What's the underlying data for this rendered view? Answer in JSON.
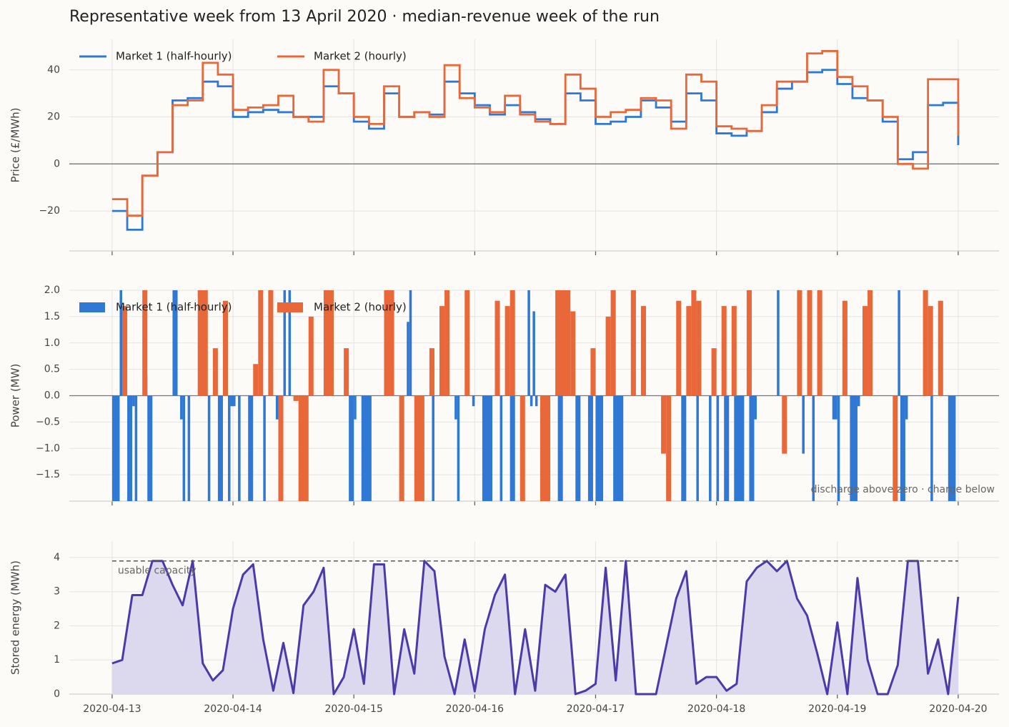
{
  "title": "Representative week from 13 April 2020  ·  median-revenue week of the run",
  "chart_data": [
    {
      "type": "line",
      "step": true,
      "ylabel": "Price (£/MWh)",
      "legend": "upper left",
      "grid": true,
      "xlim": [
        "2020-04-12T15:30",
        "2020-04-20T08:06"
      ],
      "xticks": [
        "2020-04-13",
        "2020-04-14",
        "2020-04-15",
        "2020-04-16",
        "2020-04-17",
        "2020-04-18",
        "2020-04-19",
        "2020-04-20"
      ],
      "ylim": [
        -37,
        53
      ],
      "yticks": [
        {
          "value": -20,
          "label": "−20"
        },
        0,
        20,
        40
      ],
      "x": [
        "2020-04-13T00:00",
        "2020-04-13T03:00",
        "2020-04-13T06:00",
        "2020-04-13T09:00",
        "2020-04-13T12:00",
        "2020-04-13T15:00",
        "2020-04-13T18:00",
        "2020-04-13T21:00",
        "2020-04-14T00:00",
        "2020-04-14T03:00",
        "2020-04-14T06:00",
        "2020-04-14T09:00",
        "2020-04-14T12:00",
        "2020-04-14T15:00",
        "2020-04-14T18:00",
        "2020-04-14T21:00",
        "2020-04-15T00:00",
        "2020-04-15T03:00",
        "2020-04-15T06:00",
        "2020-04-15T09:00",
        "2020-04-15T12:00",
        "2020-04-15T15:00",
        "2020-04-15T18:00",
        "2020-04-15T21:00",
        "2020-04-16T00:00",
        "2020-04-16T03:00",
        "2020-04-16T06:00",
        "2020-04-16T09:00",
        "2020-04-16T12:00",
        "2020-04-16T15:00",
        "2020-04-16T18:00",
        "2020-04-16T21:00",
        "2020-04-17T00:00",
        "2020-04-17T03:00",
        "2020-04-17T06:00",
        "2020-04-17T09:00",
        "2020-04-17T12:00",
        "2020-04-17T15:00",
        "2020-04-17T18:00",
        "2020-04-17T21:00",
        "2020-04-18T00:00",
        "2020-04-18T03:00",
        "2020-04-18T06:00",
        "2020-04-18T09:00",
        "2020-04-18T12:00",
        "2020-04-18T15:00",
        "2020-04-18T18:00",
        "2020-04-18T21:00",
        "2020-04-19T00:00",
        "2020-04-19T03:00",
        "2020-04-19T06:00",
        "2020-04-19T09:00",
        "2020-04-19T12:00",
        "2020-04-19T15:00",
        "2020-04-19T18:00",
        "2020-04-19T21:00",
        "2020-04-20T00:00"
      ],
      "series": [
        {
          "name": "Market 1 (half-hourly)",
          "color": "#2f78d4",
          "values": [
            -20,
            -28,
            -5,
            5,
            27,
            28,
            35,
            33,
            20,
            22,
            23,
            22,
            20,
            20,
            33,
            30,
            18,
            15,
            30,
            20,
            22,
            21,
            35,
            30,
            25,
            21,
            25,
            22,
            19,
            17,
            30,
            27,
            17,
            18,
            20,
            27,
            24,
            18,
            30,
            27,
            13,
            12,
            14,
            22,
            32,
            35,
            39,
            40,
            34,
            28,
            27,
            18,
            2,
            5,
            25,
            26,
            8
          ]
        },
        {
          "name": "Market 2 (hourly)",
          "color": "#e8683a",
          "values": [
            -15,
            -22,
            -5,
            5,
            25,
            27,
            43,
            38,
            23,
            24,
            25,
            29,
            20,
            18,
            40,
            30,
            20,
            17,
            33,
            20,
            22,
            20,
            42,
            28,
            24,
            22,
            29,
            21,
            18,
            17,
            38,
            32,
            20,
            22,
            23,
            28,
            27,
            15,
            38,
            35,
            16,
            15,
            14,
            25,
            35,
            35,
            47,
            48,
            37,
            33,
            27,
            20,
            0,
            -2,
            36,
            36,
            12
          ]
        }
      ]
    },
    {
      "type": "bar",
      "ylabel": "Power (MW)",
      "legend": "upper left",
      "grid": true,
      "annotation": "discharge above zero · charge below",
      "xlim": [
        "2020-04-12T15:30",
        "2020-04-20T08:06"
      ],
      "xticks": [
        "2020-04-13",
        "2020-04-14",
        "2020-04-15",
        "2020-04-16",
        "2020-04-17",
        "2020-04-18",
        "2020-04-19",
        "2020-04-20"
      ],
      "ylim": [
        -2,
        2
      ],
      "yticks": [
        {
          "value": -1.5,
          "label": "−1.5"
        },
        {
          "value": -1,
          "label": "−1.0"
        },
        {
          "value": -0.5,
          "label": "−0.5"
        },
        {
          "value": 0,
          "label": "0.0"
        },
        {
          "value": 0.5,
          "label": "0.5"
        },
        {
          "value": 1,
          "label": "1.0"
        },
        {
          "value": 1.5,
          "label": "1.5"
        },
        {
          "value": 2,
          "label": "2.0"
        }
      ],
      "series": [
        {
          "name": "Market 1 (half-hourly)",
          "color": "#2f78d4",
          "x": [
            "2020-04-13T00:00",
            "2020-04-13T01:30",
            "2020-04-13T03:00",
            "2020-04-13T04:00",
            "2020-04-13T04:30",
            "2020-04-13T06:30",
            "2020-04-13T07:00",
            "2020-04-13T12:00",
            "2020-04-13T13:30",
            "2020-04-13T14:00",
            "2020-04-13T15:00",
            "2020-04-13T19:00",
            "2020-04-13T21:00",
            "2020-04-13T23:00",
            "2020-04-13T23:30",
            "2020-04-14T01:00",
            "2020-04-14T03:00",
            "2020-04-14T06:00",
            "2020-04-14T08:30",
            "2020-04-14T10:00",
            "2020-04-14T11:00",
            "2020-04-14T23:00",
            "2020-04-15T00:00",
            "2020-04-15T01:30",
            "2020-04-15T10:30",
            "2020-04-15T11:00",
            "2020-04-15T15:30",
            "2020-04-15T20:00",
            "2020-04-15T20:30",
            "2020-04-15T23:30",
            "2020-04-16T01:30",
            "2020-04-16T05:00",
            "2020-04-16T07:00",
            "2020-04-16T10:30",
            "2020-04-16T11:00",
            "2020-04-16T11:30",
            "2020-04-16T12:00",
            "2020-04-16T16:30",
            "2020-04-16T20:00",
            "2020-04-16T22:30",
            "2020-04-17T00:00",
            "2020-04-17T03:30",
            "2020-04-17T17:00",
            "2020-04-17T20:00",
            "2020-04-17T22:30",
            "2020-04-18T00:00",
            "2020-04-18T01:30",
            "2020-04-18T03:30",
            "2020-04-18T06:30",
            "2020-04-18T07:30",
            "2020-04-18T12:00",
            "2020-04-18T17:00",
            "2020-04-18T19:00",
            "2020-04-18T23:00",
            "2020-04-19T00:00",
            "2020-04-19T02:30",
            "2020-04-19T04:00",
            "2020-04-19T12:00",
            "2020-04-19T12:30",
            "2020-04-19T13:30",
            "2020-04-19T18:30",
            "2020-04-19T22:00"
          ],
          "x_end": [
            "2020-04-13T01:30",
            "2020-04-13T02:00",
            "2020-04-13T04:00",
            "2020-04-13T04:30",
            "2020-04-13T05:00",
            "2020-04-13T07:00",
            "2020-04-13T08:00",
            "2020-04-13T13:00",
            "2020-04-13T14:00",
            "2020-04-13T14:30",
            "2020-04-13T15:30",
            "2020-04-13T19:30",
            "2020-04-13T22:00",
            "2020-04-13T23:30",
            "2020-04-14T00:30",
            "2020-04-14T01:30",
            "2020-04-14T04:00",
            "2020-04-14T06:30",
            "2020-04-14T09:00",
            "2020-04-14T10:30",
            "2020-04-14T11:30",
            "2020-04-15T00:00",
            "2020-04-15T00:30",
            "2020-04-15T03:30",
            "2020-04-15T11:00",
            "2020-04-15T11:30",
            "2020-04-15T16:00",
            "2020-04-15T20:30",
            "2020-04-15T21:00",
            "2020-04-16T00:00",
            "2020-04-16T03:30",
            "2020-04-16T05:30",
            "2020-04-16T08:00",
            "2020-04-16T11:00",
            "2020-04-16T11:30",
            "2020-04-16T12:00",
            "2020-04-16T12:30",
            "2020-04-16T17:30",
            "2020-04-16T21:00",
            "2020-04-16T23:30",
            "2020-04-17T01:30",
            "2020-04-17T05:30",
            "2020-04-17T18:00",
            "2020-04-17T20:30",
            "2020-04-17T23:00",
            "2020-04-18T00:30",
            "2020-04-18T02:30",
            "2020-04-18T05:30",
            "2020-04-18T07:30",
            "2020-04-18T08:00",
            "2020-04-18T12:30",
            "2020-04-18T17:30",
            "2020-04-18T19:30",
            "2020-04-19T00:00",
            "2020-04-19T00:30",
            "2020-04-19T04:00",
            "2020-04-19T04:30",
            "2020-04-19T12:30",
            "2020-04-19T13:30",
            "2020-04-19T14:00",
            "2020-04-19T19:00",
            "2020-04-19T23:30"
          ],
          "values": [
            -2,
            2,
            -2,
            -0.2,
            -2,
            0.4,
            -2,
            2,
            -0.45,
            -2,
            -2,
            -2,
            -2,
            -2,
            -0.2,
            -2,
            -2,
            -2,
            -0.45,
            2,
            2,
            -2,
            -0.45,
            -2,
            1.4,
            2,
            -2,
            -0.45,
            -2,
            -0.2,
            -2,
            -2,
            -2,
            2,
            -0.2,
            1.6,
            -0.2,
            -2,
            -2,
            -2,
            -2,
            -2,
            -2,
            -2,
            -2,
            -2,
            -2,
            -2,
            -2,
            -0.45,
            2,
            -1.1,
            -2,
            -0.45,
            -2,
            -2,
            -0.2,
            2,
            -2,
            -0.45,
            -2,
            -2
          ]
        },
        {
          "name": "Market 2 (hourly)",
          "color": "#e8683a",
          "x": [
            "2020-04-13T02:00",
            "2020-04-13T06:00",
            "2020-04-13T17:00",
            "2020-04-13T20:00",
            "2020-04-13T22:00",
            "2020-04-14T04:00",
            "2020-04-14T05:00",
            "2020-04-14T07:00",
            "2020-04-14T09:00",
            "2020-04-14T12:00",
            "2020-04-14T13:00",
            "2020-04-14T15:00",
            "2020-04-14T18:00",
            "2020-04-14T22:00",
            "2020-04-15T06:00",
            "2020-04-15T09:00",
            "2020-04-15T12:00",
            "2020-04-15T15:00",
            "2020-04-15T17:00",
            "2020-04-15T18:00",
            "2020-04-15T22:00",
            "2020-04-16T04:00",
            "2020-04-16T06:00",
            "2020-04-16T07:00",
            "2020-04-16T09:00",
            "2020-04-16T13:00",
            "2020-04-16T16:00",
            "2020-04-16T19:00",
            "2020-04-16T23:00",
            "2020-04-17T02:00",
            "2020-04-17T03:00",
            "2020-04-17T07:00",
            "2020-04-17T09:00",
            "2020-04-17T13:00",
            "2020-04-17T14:00",
            "2020-04-17T16:00",
            "2020-04-17T18:00",
            "2020-04-17T19:00",
            "2020-04-17T20:00",
            "2020-04-17T23:00",
            "2020-04-18T01:00",
            "2020-04-18T03:00",
            "2020-04-18T06:00",
            "2020-04-18T13:00",
            "2020-04-18T16:00",
            "2020-04-18T18:00",
            "2020-04-18T20:00",
            "2020-04-19T01:00",
            "2020-04-19T05:00",
            "2020-04-19T06:00",
            "2020-04-19T11:00",
            "2020-04-19T17:00",
            "2020-04-19T18:00",
            "2020-04-19T20:00"
          ],
          "x_end": [
            "2020-04-13T03:00",
            "2020-04-13T07:00",
            "2020-04-13T19:00",
            "2020-04-13T21:00",
            "2020-04-13T23:00",
            "2020-04-14T05:00",
            "2020-04-14T06:00",
            "2020-04-14T08:00",
            "2020-04-14T10:00",
            "2020-04-14T13:00",
            "2020-04-14T15:00",
            "2020-04-14T16:00",
            "2020-04-14T20:00",
            "2020-04-14T23:00",
            "2020-04-15T08:00",
            "2020-04-15T10:00",
            "2020-04-15T14:00",
            "2020-04-15T16:00",
            "2020-04-15T18:00",
            "2020-04-15T19:00",
            "2020-04-15T23:00",
            "2020-04-16T05:00",
            "2020-04-16T07:00",
            "2020-04-16T08:00",
            "2020-04-16T10:00",
            "2020-04-16T15:00",
            "2020-04-16T19:00",
            "2020-04-16T20:00",
            "2020-04-17T00:00",
            "2020-04-17T03:00",
            "2020-04-17T04:00",
            "2020-04-17T08:00",
            "2020-04-17T10:00",
            "2020-04-17T14:00",
            "2020-04-17T15:00",
            "2020-04-17T17:00",
            "2020-04-17T19:00",
            "2020-04-17T20:00",
            "2020-04-17T21:00",
            "2020-04-18T00:00",
            "2020-04-18T02:00",
            "2020-04-18T04:00",
            "2020-04-18T07:00",
            "2020-04-18T14:00",
            "2020-04-18T17:00",
            "2020-04-18T19:00",
            "2020-04-18T21:00",
            "2020-04-19T02:00",
            "2020-04-19T06:00",
            "2020-04-19T07:00",
            "2020-04-19T12:00",
            "2020-04-19T18:00",
            "2020-04-19T19:00",
            "2020-04-19T21:00"
          ],
          "values": [
            1.7,
            2,
            2,
            0.9,
            1.8,
            0.6,
            2,
            2,
            -2,
            -0.1,
            -2,
            1.5,
            2,
            0.9,
            2,
            -2,
            -2,
            0.9,
            1.7,
            2,
            2,
            1.8,
            1.7,
            2,
            -2,
            -2,
            2,
            1.6,
            0.9,
            1.5,
            2,
            2,
            1.7,
            -1.1,
            -2,
            1.8,
            1.7,
            2,
            1.8,
            0.9,
            1.7,
            1.7,
            2,
            -1.1,
            2,
            2,
            2,
            1.8,
            1.7,
            2,
            -2,
            2,
            1.7,
            1.8
          ]
        }
      ]
    },
    {
      "type": "area",
      "ylabel": "Stored energy (MWh)",
      "grid": true,
      "color": "#4b3aa8",
      "fill": "#dcd8ee",
      "reference": {
        "value": 3.9,
        "label": "usable capacity"
      },
      "xlim": [
        "2020-04-12T15:30",
        "2020-04-20T08:06"
      ],
      "xticks": [
        "2020-04-13",
        "2020-04-14",
        "2020-04-15",
        "2020-04-16",
        "2020-04-17",
        "2020-04-18",
        "2020-04-19",
        "2020-04-20"
      ],
      "ylim": [
        0,
        4.48
      ],
      "yticks": [
        0,
        1,
        2,
        3,
        4
      ],
      "x": [
        "2020-04-13T00:00",
        "2020-04-13T02:00",
        "2020-04-13T04:00",
        "2020-04-13T06:00",
        "2020-04-13T08:00",
        "2020-04-13T10:00",
        "2020-04-13T12:00",
        "2020-04-13T14:00",
        "2020-04-13T16:00",
        "2020-04-13T18:00",
        "2020-04-13T20:00",
        "2020-04-13T22:00",
        "2020-04-14T00:00",
        "2020-04-14T02:00",
        "2020-04-14T04:00",
        "2020-04-14T06:00",
        "2020-04-14T08:00",
        "2020-04-14T10:00",
        "2020-04-14T12:00",
        "2020-04-14T14:00",
        "2020-04-14T16:00",
        "2020-04-14T18:00",
        "2020-04-14T20:00",
        "2020-04-14T22:00",
        "2020-04-15T00:00",
        "2020-04-15T02:00",
        "2020-04-15T04:00",
        "2020-04-15T06:00",
        "2020-04-15T08:00",
        "2020-04-15T10:00",
        "2020-04-15T12:00",
        "2020-04-15T14:00",
        "2020-04-15T16:00",
        "2020-04-15T18:00",
        "2020-04-15T20:00",
        "2020-04-15T22:00",
        "2020-04-16T00:00",
        "2020-04-16T02:00",
        "2020-04-16T04:00",
        "2020-04-16T06:00",
        "2020-04-16T08:00",
        "2020-04-16T10:00",
        "2020-04-16T12:00",
        "2020-04-16T14:00",
        "2020-04-16T16:00",
        "2020-04-16T18:00",
        "2020-04-16T20:00",
        "2020-04-16T22:00",
        "2020-04-17T00:00",
        "2020-04-17T02:00",
        "2020-04-17T04:00",
        "2020-04-17T06:00",
        "2020-04-17T08:00",
        "2020-04-17T10:00",
        "2020-04-17T12:00",
        "2020-04-17T14:00",
        "2020-04-17T16:00",
        "2020-04-17T18:00",
        "2020-04-17T20:00",
        "2020-04-17T22:00",
        "2020-04-18T00:00",
        "2020-04-18T02:00",
        "2020-04-18T04:00",
        "2020-04-18T06:00",
        "2020-04-18T08:00",
        "2020-04-18T10:00",
        "2020-04-18T12:00",
        "2020-04-18T14:00",
        "2020-04-18T16:00",
        "2020-04-18T18:00",
        "2020-04-18T20:00",
        "2020-04-18T22:00",
        "2020-04-19T00:00",
        "2020-04-19T02:00",
        "2020-04-19T04:00",
        "2020-04-19T06:00",
        "2020-04-19T08:00",
        "2020-04-19T10:00",
        "2020-04-19T12:00",
        "2020-04-19T14:00",
        "2020-04-19T16:00",
        "2020-04-19T18:00",
        "2020-04-19T20:00",
        "2020-04-19T22:00",
        "2020-04-20T00:00"
      ],
      "values": [
        0.9,
        1.0,
        2.9,
        2.9,
        3.9,
        3.9,
        3.2,
        2.6,
        3.9,
        0.9,
        0.4,
        0.7,
        2.5,
        3.5,
        3.8,
        1.6,
        0.1,
        1.5,
        0.03,
        2.6,
        3.0,
        3.7,
        0,
        0.5,
        1.9,
        0.3,
        3.8,
        3.8,
        0,
        1.9,
        0.6,
        3.9,
        3.6,
        1.1,
        0,
        1.6,
        0.08,
        1.9,
        2.9,
        3.5,
        0,
        1.9,
        0.1,
        3.2,
        3.0,
        3.5,
        0,
        0.1,
        0.3,
        3.7,
        0.4,
        3.9,
        0,
        0,
        0,
        1.4,
        2.8,
        3.6,
        0.3,
        0.5,
        0.5,
        0.1,
        0.3,
        3.3,
        3.7,
        3.9,
        3.6,
        3.9,
        2.8,
        2.3,
        1.2,
        0,
        2.1,
        0,
        3.4,
        1.0,
        0,
        0,
        0.85,
        3.9,
        3.9,
        0.6,
        1.6,
        0,
        2.85
      ]
    }
  ]
}
